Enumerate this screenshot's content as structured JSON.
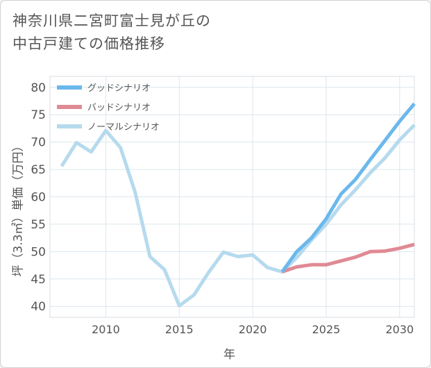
{
  "title_lines": [
    "神奈川県二宮町富士見が丘の",
    "中古戸建ての価格推移"
  ],
  "chart_data": {
    "type": "line",
    "title": "神奈川県二宮町富士見が丘の中古戸建ての価格推移",
    "xlabel": "年",
    "ylabel": "坪（3.3㎡）単価（万円）",
    "xlim": [
      2006.2,
      2031
    ],
    "ylim": [
      38,
      82
    ],
    "xticks": [
      2010,
      2015,
      2020,
      2025,
      2030
    ],
    "yticks": [
      40,
      45,
      50,
      55,
      60,
      65,
      70,
      75,
      80
    ],
    "grid": true,
    "legend_position": "top-left",
    "series": [
      {
        "name": "グッドシナリオ",
        "color": "#6bb8ec",
        "x": [
          2022,
          2023,
          2024,
          2025,
          2026,
          2027,
          2028,
          2029,
          2030,
          2031
        ],
        "y": [
          46.3,
          50.0,
          52.5,
          56.0,
          60.5,
          63.2,
          66.8,
          70.3,
          73.8,
          77.0
        ]
      },
      {
        "name": "バッドシナリオ",
        "color": "#e08a94",
        "x": [
          2022,
          2023,
          2024,
          2025,
          2026,
          2027,
          2028,
          2029,
          2030,
          2031
        ],
        "y": [
          46.3,
          47.2,
          47.6,
          47.6,
          48.3,
          49.0,
          50.0,
          50.1,
          50.6,
          51.3
        ]
      },
      {
        "name": "ノーマルシナリオ",
        "color": "#b6daed",
        "x": [
          2007,
          2008,
          2009,
          2010,
          2011,
          2012,
          2013,
          2014,
          2015,
          2016,
          2017,
          2018,
          2019,
          2020,
          2021,
          2022,
          2023,
          2024,
          2025,
          2026,
          2027,
          2028,
          2029,
          2030,
          2031
        ],
        "y": [
          65.6,
          69.9,
          68.2,
          72.1,
          69.0,
          60.8,
          49.1,
          46.7,
          40.1,
          42.1,
          46.2,
          49.9,
          49.1,
          49.4,
          47.1,
          46.3,
          48.9,
          52.1,
          55.0,
          58.5,
          61.3,
          64.4,
          67.1,
          70.4,
          73.1
        ]
      }
    ]
  }
}
